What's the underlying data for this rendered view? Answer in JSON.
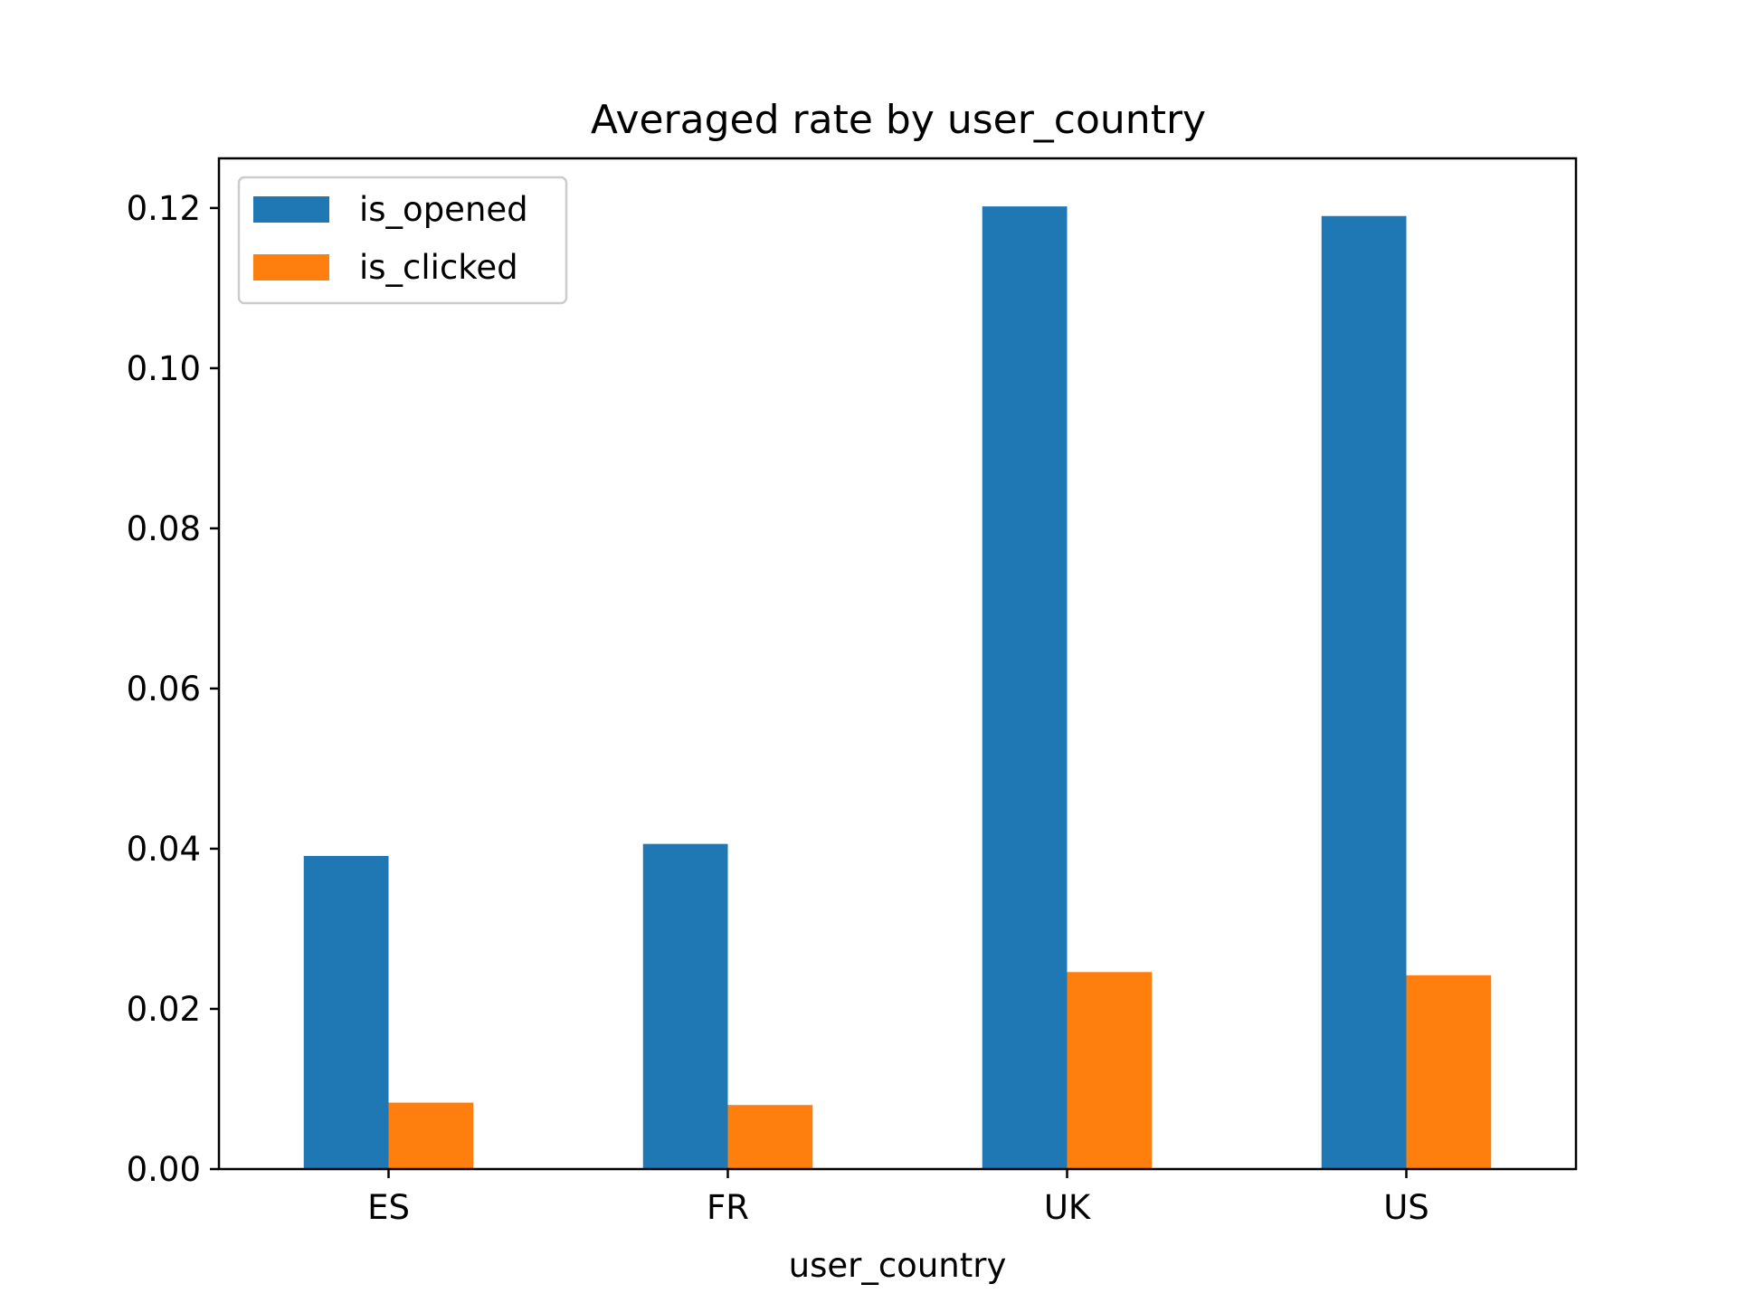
{
  "chart_data": {
    "type": "bar",
    "title": "Averaged rate by user_country",
    "xlabel": "user_country",
    "ylabel": "",
    "categories": [
      "ES",
      "FR",
      "UK",
      "US"
    ],
    "series": [
      {
        "name": "is_opened",
        "color": "#1f77b4",
        "values": [
          0.0391,
          0.0406,
          0.1202,
          0.119
        ]
      },
      {
        "name": "is_clicked",
        "color": "#ff7f0e",
        "values": [
          0.0083,
          0.008,
          0.0246,
          0.0242
        ]
      }
    ],
    "ylim": [
      0,
      0.1262
    ],
    "yticks": [
      "0.00",
      "0.02",
      "0.04",
      "0.06",
      "0.08",
      "0.10",
      "0.12"
    ],
    "grid": false,
    "legend": "top-left"
  }
}
